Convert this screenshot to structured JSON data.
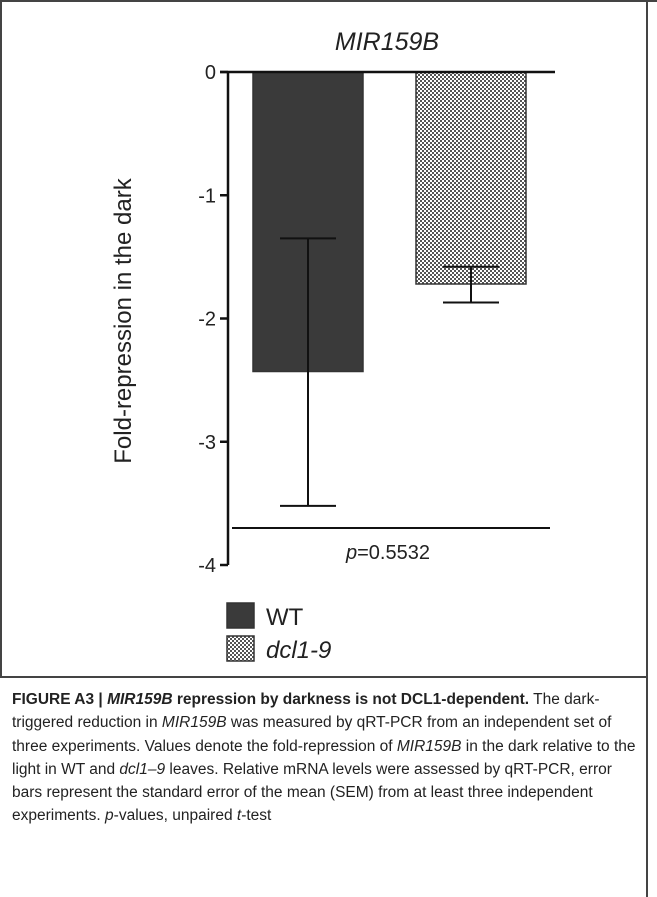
{
  "chart_data": {
    "type": "bar",
    "title": "MIR159B",
    "ylabel": "Fold-repression in the dark",
    "xlabel": "",
    "ylim": [
      -4,
      0
    ],
    "yticks": [
      "0",
      "-1",
      "-2",
      "-3",
      "-4"
    ],
    "categories": [
      "WT",
      "dcl1-9"
    ],
    "values": [
      -2.43,
      -1.72
    ],
    "error_high": [
      -1.35,
      -1.58
    ],
    "error_low": [
      -3.52,
      -1.87
    ],
    "bar_colors": [
      "#3a3a3a",
      "pattern-checker"
    ],
    "legend": [
      {
        "label": "WT",
        "swatch": "solid-dark"
      },
      {
        "label": "dcl1-9",
        "swatch": "checker"
      }
    ],
    "legend_position": "bottom-left",
    "annotation": {
      "prefix": "p",
      "text": "=0.5532",
      "y": -3.7
    }
  },
  "caption": {
    "head_prefix": "FIGURE A3 | ",
    "head_gene": "MIR159B",
    "head_rest": " repression by darkness is not DCL1-dependent.",
    "s1a": "The dark-triggered reduction in ",
    "s1gene": "MIR159B",
    "s1b": " was measured by qRT-PCR from an independent set of three experiments. Values denote the fold-repression of ",
    "s2gene": "MIR159B",
    "s2b": " in the dark relative to the light in WT and ",
    "s2mut": "dcl1–9",
    "s2c": " leaves. Relative mRNA levels were assessed by qRT-PCR, error bars represent the standard error of the mean (SEM) from at least three independent experiments. ",
    "s3p": "p",
    "s3a": "-values, unpaired ",
    "s3t": "t",
    "s3b": "-test"
  }
}
